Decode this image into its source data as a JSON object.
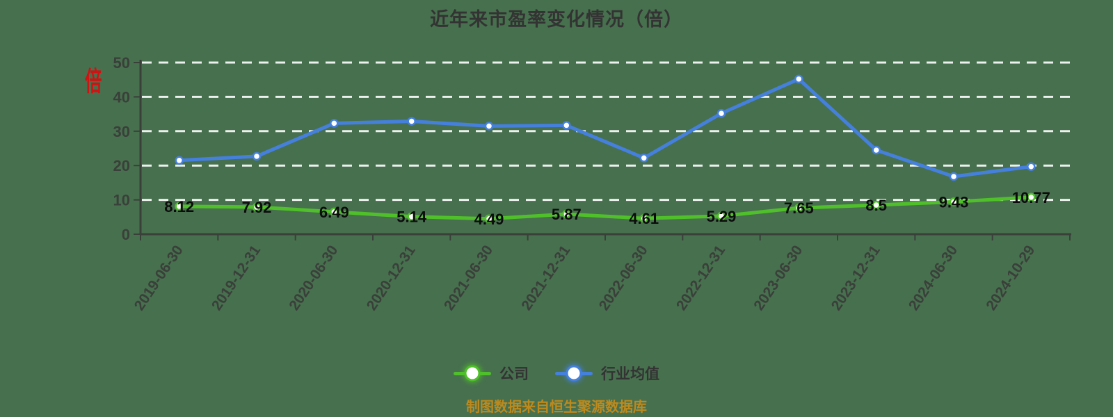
{
  "title": "近年来市盈率变化情况（倍）",
  "unit_stamp": "倍",
  "footer": "制图数据来自恒生聚源数据库",
  "colors": {
    "background": "#47704e",
    "company": "#4fc02a",
    "industry": "#4580dd",
    "grid": "#edf1ed",
    "axis": "#3a3f3a",
    "point_label": "#0c0c0c",
    "text": "#333333",
    "footer": "#bd8a1e",
    "stamp": "#d11212",
    "marker_fill": "#ffffff"
  },
  "legend": {
    "items": [
      {
        "label": "公司",
        "color_key": "company"
      },
      {
        "label": "行业均值",
        "color_key": "industry"
      }
    ]
  },
  "chart_data": {
    "type": "line",
    "title": "近年来市盈率变化情况（倍）",
    "categories": [
      "2019-06-30",
      "2019-12-31",
      "2020-06-30",
      "2020-12-31",
      "2021-06-30",
      "2021-12-31",
      "2022-06-30",
      "2022-12-31",
      "2023-06-30",
      "2023-12-31",
      "2024-06-30",
      "2024-10-29"
    ],
    "series": [
      {
        "name": "公司",
        "color": "#4fc02a",
        "point_labels": true,
        "values": [
          8.12,
          7.92,
          6.49,
          5.14,
          4.49,
          5.87,
          4.61,
          5.29,
          7.65,
          8.5,
          9.43,
          10.77
        ]
      },
      {
        "name": "行业均值",
        "color": "#4580dd",
        "point_labels": false,
        "values": [
          21.5,
          22.7,
          32.3,
          32.9,
          31.5,
          31.7,
          22.2,
          35.2,
          45.2,
          24.5,
          16.8,
          19.7
        ]
      }
    ],
    "ylim": [
      0,
      50
    ],
    "yticks": [
      0,
      10,
      20,
      30,
      40,
      50
    ],
    "xlabel": "",
    "ylabel": "倍",
    "grid": "horizontal-dashed-white",
    "legend_position": "bottom"
  }
}
